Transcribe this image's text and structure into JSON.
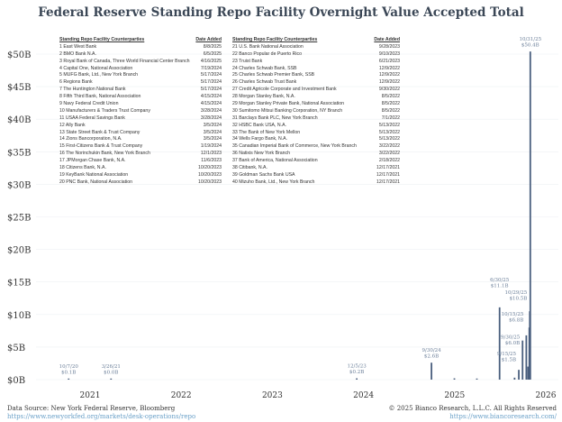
{
  "chart_data": {
    "type": "bar",
    "title": "Federal Reserve Standing Repo Facility Overnight Value Accepted Total",
    "xlabel": "",
    "ylabel": "",
    "ylim": [
      0,
      50
    ],
    "yticks": [
      "$0B",
      "$5B",
      "$10B",
      "$15B",
      "$20B",
      "$25B",
      "$30B",
      "$35B",
      "$40B",
      "$45B",
      "$50B"
    ],
    "xticks": [
      "2021",
      "2022",
      "2023",
      "2024",
      "2025",
      "2026"
    ],
    "points": [
      {
        "date": "2020-10-07",
        "value": 0.1,
        "label_date": "10/7/20",
        "label_value": "$0.1B"
      },
      {
        "date": "2021-03-26",
        "value": 0.0,
        "label_date": "3/26/21",
        "label_value": "$0.0B"
      },
      {
        "date": "2023-12-05",
        "value": 0.2,
        "label_date": "12/5/23",
        "label_value": "$0.2B"
      },
      {
        "date": "2024-09-30",
        "value": 2.6,
        "label_date": "9/30/24",
        "label_value": "$2.6B"
      },
      {
        "date": "2024-12-31",
        "value": 0.2
      },
      {
        "date": "2025-03-31",
        "value": 0.1
      },
      {
        "date": "2025-06-30",
        "value": 11.1,
        "label_date": "6/30/25",
        "label_value": "$11.1B"
      },
      {
        "date": "2025-08-29",
        "value": 0.3
      },
      {
        "date": "2025-09-15",
        "value": 1.5,
        "label_date": "9/15/25",
        "label_value": "$1.5B"
      },
      {
        "date": "2025-09-30",
        "value": 6.0,
        "label_date": "9/30/25",
        "label_value": "$6.0B"
      },
      {
        "date": "2025-10-15",
        "value": 6.8,
        "label_date": "10/15/25",
        "label_value": "$6.8B"
      },
      {
        "date": "2025-10-22",
        "value": 2.0
      },
      {
        "date": "2025-10-27",
        "value": 8.0
      },
      {
        "date": "2025-10-29",
        "value": 10.5,
        "label_date": "10/29/25",
        "label_value": "$10.5B"
      },
      {
        "date": "2025-10-31",
        "value": 50.4,
        "label_date": "10/31/25",
        "label_value": "$50.4B"
      }
    ]
  },
  "table": {
    "header_name": "Standing Repo Facility Counterparties",
    "header_date": "Date Added",
    "rows": [
      [
        "1 East West Bank",
        "8/8/2025"
      ],
      [
        "2 BMO Bank N.A.",
        "6/5/2025"
      ],
      [
        "3 Royal Bank of Canada, Three World Financial Center Branch",
        "4/16/2025"
      ],
      [
        "4 Capital One, National Association",
        "7/19/2024"
      ],
      [
        "5 MUFG Bank, Ltd., New York Branch",
        "5/17/2024"
      ],
      [
        "6 Regions Bank",
        "5/17/2024"
      ],
      [
        "7 The Huntington National Bank",
        "5/17/2024"
      ],
      [
        "8 Fifth Third Bank, National Association",
        "4/15/2024"
      ],
      [
        "9 Navy Federal Credit Union",
        "4/15/2024"
      ],
      [
        "10 Manufacturers & Traders Trust Company",
        "3/28/2024"
      ],
      [
        "11 USAA Federal Savings Bank",
        "3/28/2024"
      ],
      [
        "12 Ally Bank",
        "3/5/2024"
      ],
      [
        "13 State Street Bank & Trust Company",
        "3/5/2024"
      ],
      [
        "14 Zions Bancorporation, N.A.",
        "3/5/2024"
      ],
      [
        "15 First-Citizens Bank & Trust Company",
        "1/19/2024"
      ],
      [
        "16 The Norinchukin Bank, New York Branch",
        "12/1/2023"
      ],
      [
        "17 JPMorgan Chase Bank, N.A.",
        "11/6/2023"
      ],
      [
        "18 Citizens Bank, N.A.",
        "10/20/2023"
      ],
      [
        "19 KeyBank National Association",
        "10/20/2023"
      ],
      [
        "20 PNC Bank, National Association",
        "10/20/2023"
      ],
      [
        "21 U.S. Bank National Association",
        "9/28/2023"
      ],
      [
        "22 Banco Popular de Puerto Rico",
        "9/10/2023"
      ],
      [
        "23 Truist Bank",
        "6/21/2023"
      ],
      [
        "24 Charles Schwab Bank, SSB",
        "12/9/2022"
      ],
      [
        "25 Charles Schwab Premier Bank, SSB",
        "12/9/2022"
      ],
      [
        "26 Charles Schwab Trust Bank",
        "12/9/2022"
      ],
      [
        "27 Credit Agricole Corporate and Investment Bank",
        "9/30/2022"
      ],
      [
        "28 Morgan Stanley Bank, N.A.",
        "8/5/2022"
      ],
      [
        "29 Morgan Stanley Private Bank, National Association",
        "8/5/2022"
      ],
      [
        "30 Sumitomo Mitsui Banking Corporation, NY Branch",
        "8/5/2022"
      ],
      [
        "31 Barclays Bank PLC, New York Branch",
        "7/1/2022"
      ],
      [
        "32 HSBC Bank USA, N.A.",
        "5/13/2022"
      ],
      [
        "33 The Bank of New York Mellon",
        "5/13/2022"
      ],
      [
        "34 Wells Fargo Bank, N.A.",
        "5/13/2022"
      ],
      [
        "35 Canadian Imperial Bank of Commerce, New York Branch",
        "3/22/2022"
      ],
      [
        "36 Natixis New York Branch",
        "3/22/2022"
      ],
      [
        "37 Bank of America, National Association",
        "2/18/2022"
      ],
      [
        "38 Citibank, N.A.",
        "12/17/2021"
      ],
      [
        "39 Goldman Sachs Bank USA",
        "12/17/2021"
      ],
      [
        "40 Mizuho Bank, Ltd., New York Branch",
        "12/17/2021"
      ]
    ]
  },
  "footer": {
    "source": "Data Source: New York Federal Reserve, Bloomberg",
    "source_link": "https://www.newyorkfed.org/markets/desk-operations/repo",
    "copyright": "© 2025 Bianco Research, L.L.C. All Rights Reserved",
    "copyright_link": "https://www.biancoresearch.com/"
  },
  "colors": {
    "bar": "#4a5f7e",
    "label": "#6b7f99",
    "title": "#3b4756"
  }
}
